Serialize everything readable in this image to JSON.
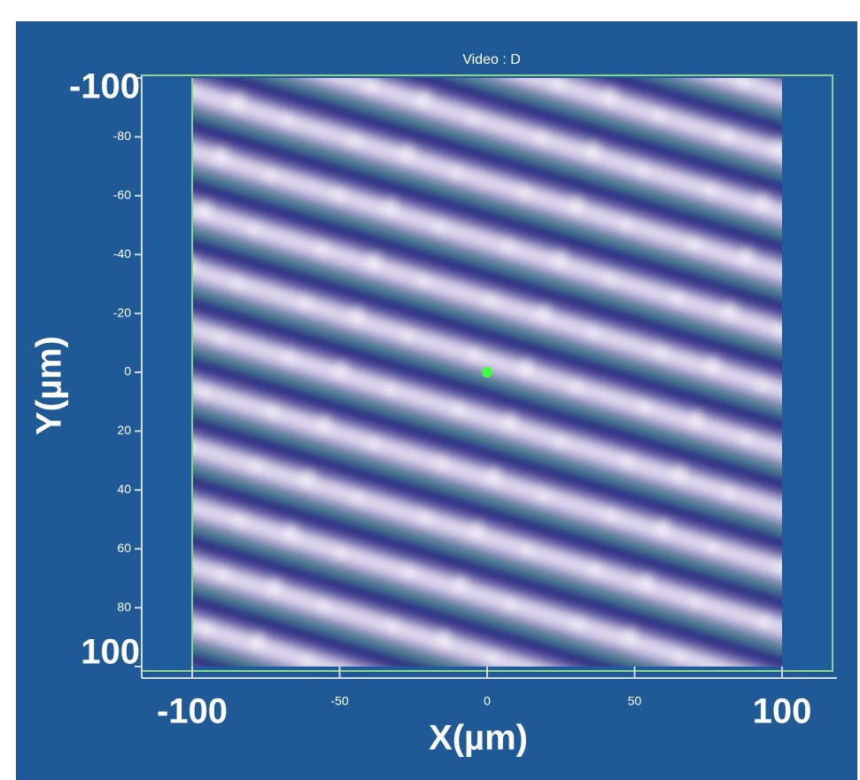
{
  "chart_data": {
    "type": "image",
    "title": "Video : D",
    "x_label": "X(µm)",
    "y_label": "Y(µm)",
    "xlim": [
      -100,
      100
    ],
    "xticks": [
      -100,
      -50,
      0,
      50,
      100
    ],
    "ylim": [
      100,
      -100
    ],
    "yticks": [
      -100,
      -80,
      -60,
      -40,
      -20,
      0,
      20,
      40,
      60,
      80,
      100
    ],
    "x": [
      0
    ],
    "values": [
      0
    ],
    "color": "#3dff3d"
  }
}
